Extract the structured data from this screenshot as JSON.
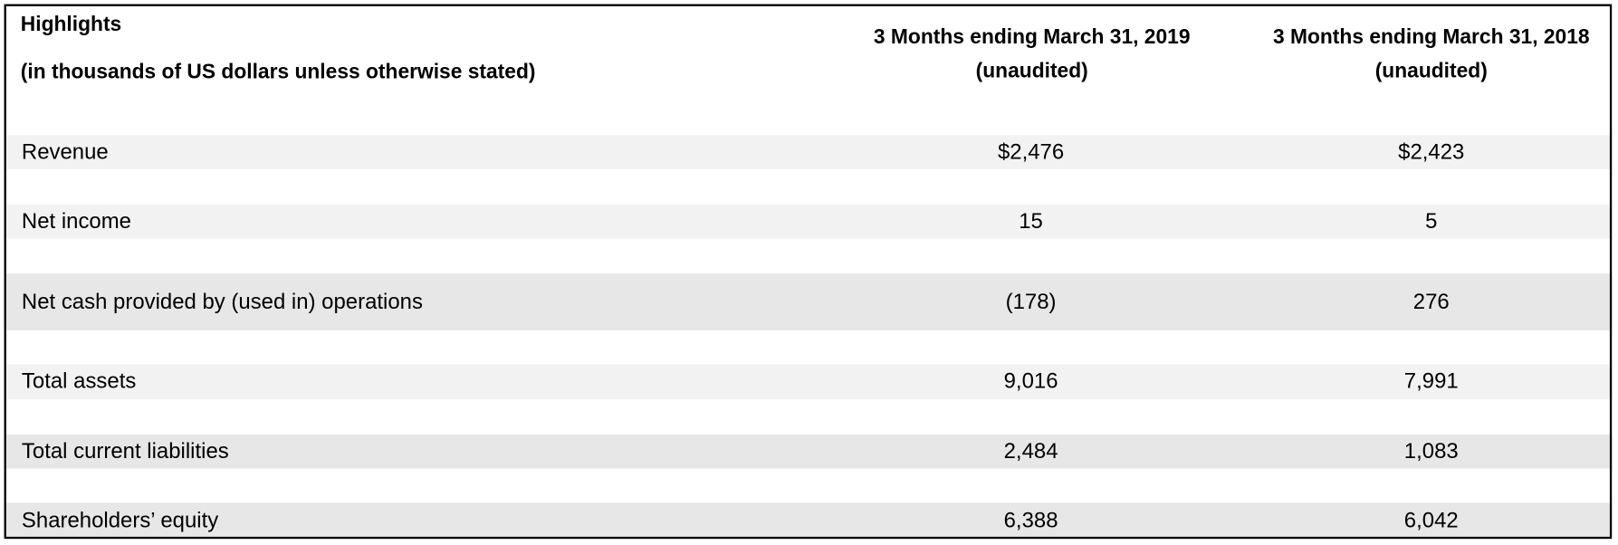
{
  "header": {
    "title": "Highlights",
    "subtitle": "(in thousands of US dollars unless otherwise stated)",
    "columns": [
      "3 Months ending March 31, 2019 (unaudited)",
      "3 Months ending March 31, 2018 (unaudited)"
    ]
  },
  "table": {
    "rows": [
      [
        "Revenue",
        "$2,476",
        "$2,423"
      ],
      [
        "Net income",
        "15",
        "5"
      ],
      [
        "Net cash provided by (used in) operations",
        "(178)",
        "276"
      ],
      [
        "Total assets",
        "9,016",
        "7,991"
      ],
      [
        "Total current liabilities",
        "2,484",
        "1,083"
      ],
      [
        "Shareholders’ equity",
        "6,388",
        "6,042"
      ]
    ]
  }
}
